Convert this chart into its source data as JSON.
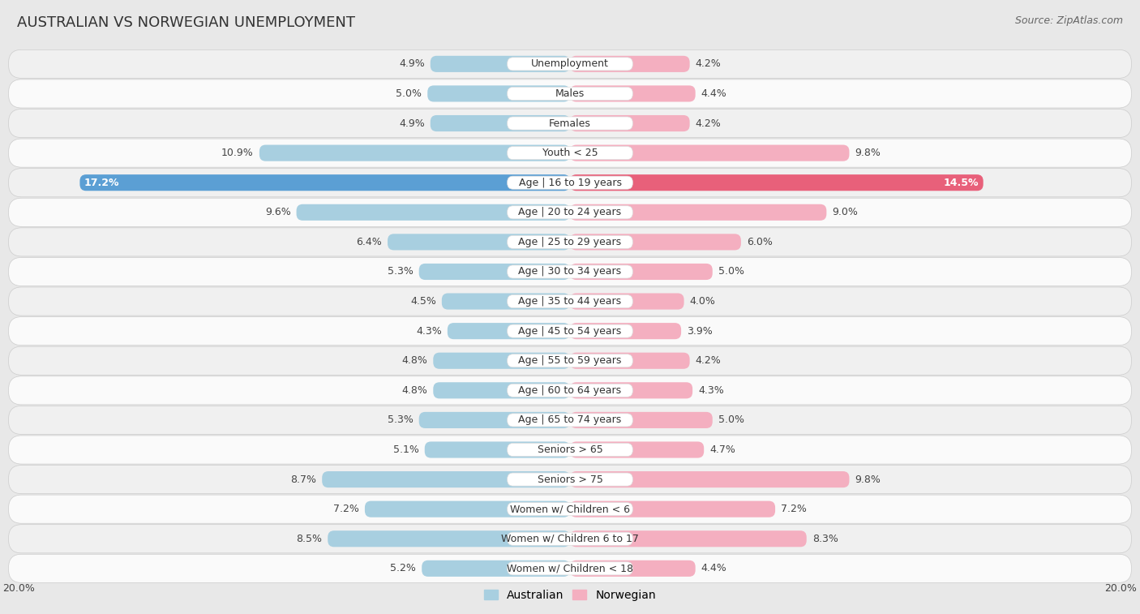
{
  "title": "AUSTRALIAN VS NORWEGIAN UNEMPLOYMENT",
  "source": "Source: ZipAtlas.com",
  "categories": [
    "Unemployment",
    "Males",
    "Females",
    "Youth < 25",
    "Age | 16 to 19 years",
    "Age | 20 to 24 years",
    "Age | 25 to 29 years",
    "Age | 30 to 34 years",
    "Age | 35 to 44 years",
    "Age | 45 to 54 years",
    "Age | 55 to 59 years",
    "Age | 60 to 64 years",
    "Age | 65 to 74 years",
    "Seniors > 65",
    "Seniors > 75",
    "Women w/ Children < 6",
    "Women w/ Children 6 to 17",
    "Women w/ Children < 18"
  ],
  "australian": [
    4.9,
    5.0,
    4.9,
    10.9,
    17.2,
    9.6,
    6.4,
    5.3,
    4.5,
    4.3,
    4.8,
    4.8,
    5.3,
    5.1,
    8.7,
    7.2,
    8.5,
    5.2
  ],
  "norwegian": [
    4.2,
    4.4,
    4.2,
    9.8,
    14.5,
    9.0,
    6.0,
    5.0,
    4.0,
    3.9,
    4.2,
    4.3,
    5.0,
    4.7,
    9.8,
    7.2,
    8.3,
    4.4
  ],
  "aus_color_normal": "#a8cfe0",
  "nor_color_normal": "#f4afc0",
  "aus_color_highlight": "#5b9fd4",
  "nor_color_highlight": "#e8607a",
  "highlight_row": 4,
  "row_bg_odd": "#f0f0f0",
  "row_bg_even": "#fafafa",
  "bg_color": "#e8e8e8",
  "max_val": 20.0,
  "label_fontsize": 9.0,
  "title_fontsize": 13,
  "legend_fontsize": 10,
  "source_fontsize": 9,
  "val_label_fontsize": 9.0
}
